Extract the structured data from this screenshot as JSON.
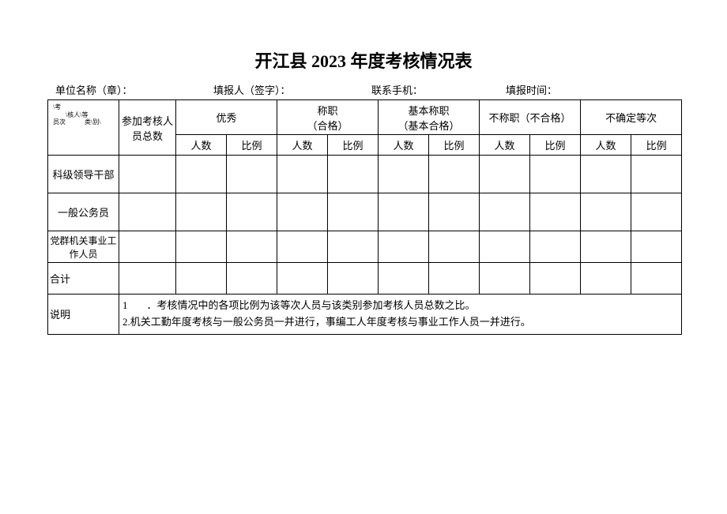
{
  "title": "开江县 2023 年度考核情况表",
  "meta": {
    "unit_label": "单位名称（章）：",
    "reporter_label": "填报人（签字）：",
    "phone_label": "联系手机：",
    "time_label": "填报时间："
  },
  "header": {
    "diag_top": "\\考\n　　\\核人\\等\n员次　　　类\\别\\",
    "total_label": "参加考核人员总数",
    "groups": [
      {
        "label": "优秀"
      },
      {
        "label": "称职\n（合格）"
      },
      {
        "label": "基本称职\n（基本合格）"
      },
      {
        "label": "不称职（不合格）"
      },
      {
        "label": "不确定等次"
      }
    ],
    "sub_count": "人数",
    "sub_ratio": "比例"
  },
  "rows": [
    {
      "label": "科级领导干部"
    },
    {
      "label": "一般公务员"
    },
    {
      "label": "党群机关事业工作人员"
    },
    {
      "label": "合计"
    }
  ],
  "notes": {
    "label": "说明",
    "line1_num": "1",
    "line1_text": "．考核情况中的各项比例为该等次人员与该类别参加考核人员总数之比。",
    "line2": "2.机关工勤年度考核与一般公务员一并进行，事编工人年度考核与事业工作人员一并进行。"
  },
  "style": {
    "border_color": "#000000",
    "background": "#ffffff",
    "title_fontsize": 22,
    "body_fontsize": 13,
    "tiny_fontsize": 9
  }
}
